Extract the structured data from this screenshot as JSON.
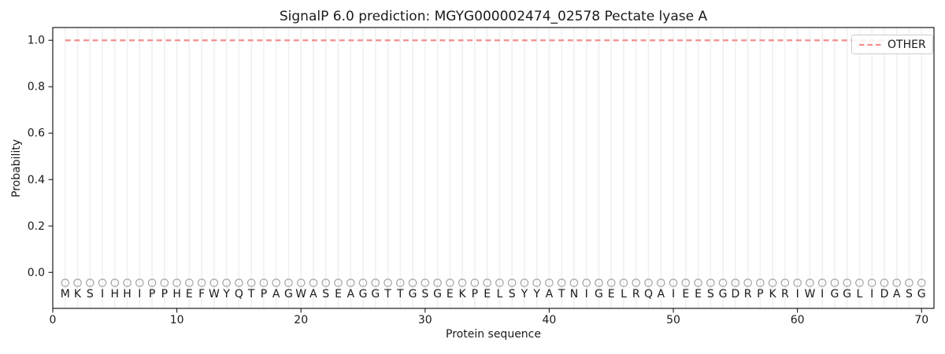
{
  "figure": {
    "title": "SignalP 6.0 prediction: MGYG000002474_02578 Pectate lyase A",
    "xlabel": "Protein sequence",
    "ylabel": "Probability",
    "legend": {
      "position": "upper right",
      "items": [
        {
          "label": "OTHER",
          "color": "#f38e8e",
          "style": "dashed"
        }
      ]
    }
  },
  "chart_data": {
    "type": "line",
    "title": "SignalP 6.0 prediction: MGYG000002474_02578 Pectate lyase A",
    "xlabel": "Protein sequence",
    "ylabel": "Probability",
    "xlim": [
      0,
      71
    ],
    "ylim": [
      -0.155,
      1.055
    ],
    "grid": "vertical-per-residue",
    "legend_position": "upper right",
    "xticks": [
      {
        "value": 0,
        "label": "0"
      },
      {
        "value": 10,
        "label": "10"
      },
      {
        "value": 20,
        "label": "20"
      },
      {
        "value": 30,
        "label": "30"
      },
      {
        "value": 40,
        "label": "40"
      },
      {
        "value": 50,
        "label": "50"
      },
      {
        "value": 60,
        "label": "60"
      },
      {
        "value": 70,
        "label": "70"
      }
    ],
    "yticks": [
      {
        "value": 0.0,
        "label": "0.0"
      },
      {
        "value": 0.2,
        "label": "0.2"
      },
      {
        "value": 0.4,
        "label": "0.4"
      },
      {
        "value": 0.6,
        "label": "0.6"
      },
      {
        "value": 0.8,
        "label": "0.8"
      },
      {
        "value": 1.0,
        "label": "1.0"
      }
    ],
    "sequence": "MKSIHHIPPHEFWYQTPAGWASEAGGTTGSGEKPELSYYATNIGELRQAIEESGDRPKRIWIGGLIDASG",
    "sequence_length": 70,
    "series": [
      {
        "name": "OTHER",
        "style": "dashed",
        "color": "#f38e8e",
        "x_start": 1,
        "x_end": 70,
        "constant_value": 1.0
      }
    ],
    "markers": {
      "glyph": "circle",
      "y": -0.045,
      "color": "#a3a3a3"
    },
    "letter_y": -0.09,
    "colors": {
      "grid": "#f0f0f0",
      "spine": "#1a1a1a",
      "tick_text": "#1a1a1a",
      "letter_text": "#1a1a1a",
      "legend_border": "#cccccc"
    }
  }
}
